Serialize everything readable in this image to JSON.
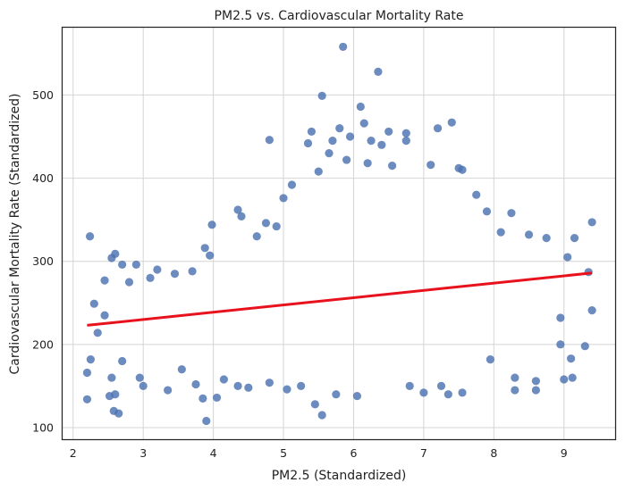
{
  "chart_data": {
    "type": "scatter",
    "title": "PM2.5 vs. Cardiovascular Mortality Rate",
    "xlabel": "PM2.5 (Standardized)",
    "ylabel": "Cardiovascular Mortality Rate (Standardized)",
    "xlim": [
      1.85,
      9.73
    ],
    "ylim": [
      86,
      581
    ],
    "xticks": [
      2,
      3,
      4,
      5,
      6,
      7,
      8,
      9
    ],
    "yticks": [
      100,
      200,
      300,
      400,
      500
    ],
    "grid": true,
    "point_color": "#4c72b0",
    "line_color": "#e8121d",
    "regression_line": {
      "x": [
        2.2,
        9.4
      ],
      "y": [
        223,
        286
      ]
    },
    "series": [
      {
        "values": [
          {
            "x": 2.24,
            "y": 330
          },
          {
            "x": 2.2,
            "y": 134
          },
          {
            "x": 2.2,
            "y": 166
          },
          {
            "x": 2.25,
            "y": 182
          },
          {
            "x": 2.3,
            "y": 249
          },
          {
            "x": 2.35,
            "y": 214
          },
          {
            "x": 2.45,
            "y": 277
          },
          {
            "x": 2.45,
            "y": 235
          },
          {
            "x": 2.52,
            "y": 138
          },
          {
            "x": 2.55,
            "y": 304
          },
          {
            "x": 2.58,
            "y": 120
          },
          {
            "x": 2.6,
            "y": 309
          },
          {
            "x": 2.65,
            "y": 117
          },
          {
            "x": 2.7,
            "y": 296
          },
          {
            "x": 2.6,
            "y": 140
          },
          {
            "x": 2.55,
            "y": 160
          },
          {
            "x": 2.7,
            "y": 180
          },
          {
            "x": 2.8,
            "y": 275
          },
          {
            "x": 2.9,
            "y": 296
          },
          {
            "x": 2.95,
            "y": 160
          },
          {
            "x": 3.0,
            "y": 150
          },
          {
            "x": 3.1,
            "y": 280
          },
          {
            "x": 3.2,
            "y": 290
          },
          {
            "x": 3.35,
            "y": 145
          },
          {
            "x": 3.45,
            "y": 285
          },
          {
            "x": 3.55,
            "y": 170
          },
          {
            "x": 3.7,
            "y": 288
          },
          {
            "x": 3.75,
            "y": 152
          },
          {
            "x": 3.85,
            "y": 135
          },
          {
            "x": 3.9,
            "y": 108
          },
          {
            "x": 3.88,
            "y": 316
          },
          {
            "x": 3.95,
            "y": 307
          },
          {
            "x": 3.98,
            "y": 344
          },
          {
            "x": 4.05,
            "y": 136
          },
          {
            "x": 4.15,
            "y": 158
          },
          {
            "x": 4.35,
            "y": 150
          },
          {
            "x": 4.35,
            "y": 362
          },
          {
            "x": 4.4,
            "y": 354
          },
          {
            "x": 4.5,
            "y": 148
          },
          {
            "x": 4.62,
            "y": 330
          },
          {
            "x": 4.75,
            "y": 346
          },
          {
            "x": 4.8,
            "y": 446
          },
          {
            "x": 4.8,
            "y": 154
          },
          {
            "x": 4.9,
            "y": 342
          },
          {
            "x": 5.0,
            "y": 376
          },
          {
            "x": 5.05,
            "y": 146
          },
          {
            "x": 5.12,
            "y": 392
          },
          {
            "x": 5.25,
            "y": 150
          },
          {
            "x": 5.35,
            "y": 442
          },
          {
            "x": 5.4,
            "y": 456
          },
          {
            "x": 5.45,
            "y": 128
          },
          {
            "x": 5.5,
            "y": 408
          },
          {
            "x": 5.55,
            "y": 499
          },
          {
            "x": 5.55,
            "y": 115
          },
          {
            "x": 5.65,
            "y": 430
          },
          {
            "x": 5.7,
            "y": 445
          },
          {
            "x": 5.75,
            "y": 140
          },
          {
            "x": 5.8,
            "y": 460
          },
          {
            "x": 5.85,
            "y": 558
          },
          {
            "x": 5.9,
            "y": 422
          },
          {
            "x": 5.95,
            "y": 450
          },
          {
            "x": 6.05,
            "y": 138
          },
          {
            "x": 6.1,
            "y": 486
          },
          {
            "x": 6.15,
            "y": 466
          },
          {
            "x": 6.2,
            "y": 418
          },
          {
            "x": 6.25,
            "y": 445
          },
          {
            "x": 6.35,
            "y": 528
          },
          {
            "x": 6.4,
            "y": 440
          },
          {
            "x": 6.5,
            "y": 456
          },
          {
            "x": 6.55,
            "y": 415
          },
          {
            "x": 6.75,
            "y": 454
          },
          {
            "x": 6.75,
            "y": 445
          },
          {
            "x": 6.8,
            "y": 150
          },
          {
            "x": 7.0,
            "y": 142
          },
          {
            "x": 7.1,
            "y": 416
          },
          {
            "x": 7.2,
            "y": 460
          },
          {
            "x": 7.25,
            "y": 150
          },
          {
            "x": 7.35,
            "y": 140
          },
          {
            "x": 7.4,
            "y": 467
          },
          {
            "x": 7.5,
            "y": 412
          },
          {
            "x": 7.55,
            "y": 410
          },
          {
            "x": 7.55,
            "y": 142
          },
          {
            "x": 7.75,
            "y": 380
          },
          {
            "x": 7.9,
            "y": 360
          },
          {
            "x": 7.95,
            "y": 182
          },
          {
            "x": 8.1,
            "y": 335
          },
          {
            "x": 8.25,
            "y": 358
          },
          {
            "x": 8.3,
            "y": 160
          },
          {
            "x": 8.3,
            "y": 145
          },
          {
            "x": 8.5,
            "y": 332
          },
          {
            "x": 8.6,
            "y": 156
          },
          {
            "x": 8.6,
            "y": 145
          },
          {
            "x": 8.75,
            "y": 328
          },
          {
            "x": 8.95,
            "y": 200
          },
          {
            "x": 9.0,
            "y": 158
          },
          {
            "x": 9.1,
            "y": 183
          },
          {
            "x": 9.15,
            "y": 328
          },
          {
            "x": 9.3,
            "y": 198
          },
          {
            "x": 9.35,
            "y": 287
          },
          {
            "x": 9.4,
            "y": 347
          },
          {
            "x": 9.4,
            "y": 241
          },
          {
            "x": 9.12,
            "y": 160
          },
          {
            "x": 9.05,
            "y": 305
          },
          {
            "x": 8.95,
            "y": 232
          }
        ]
      }
    ]
  }
}
